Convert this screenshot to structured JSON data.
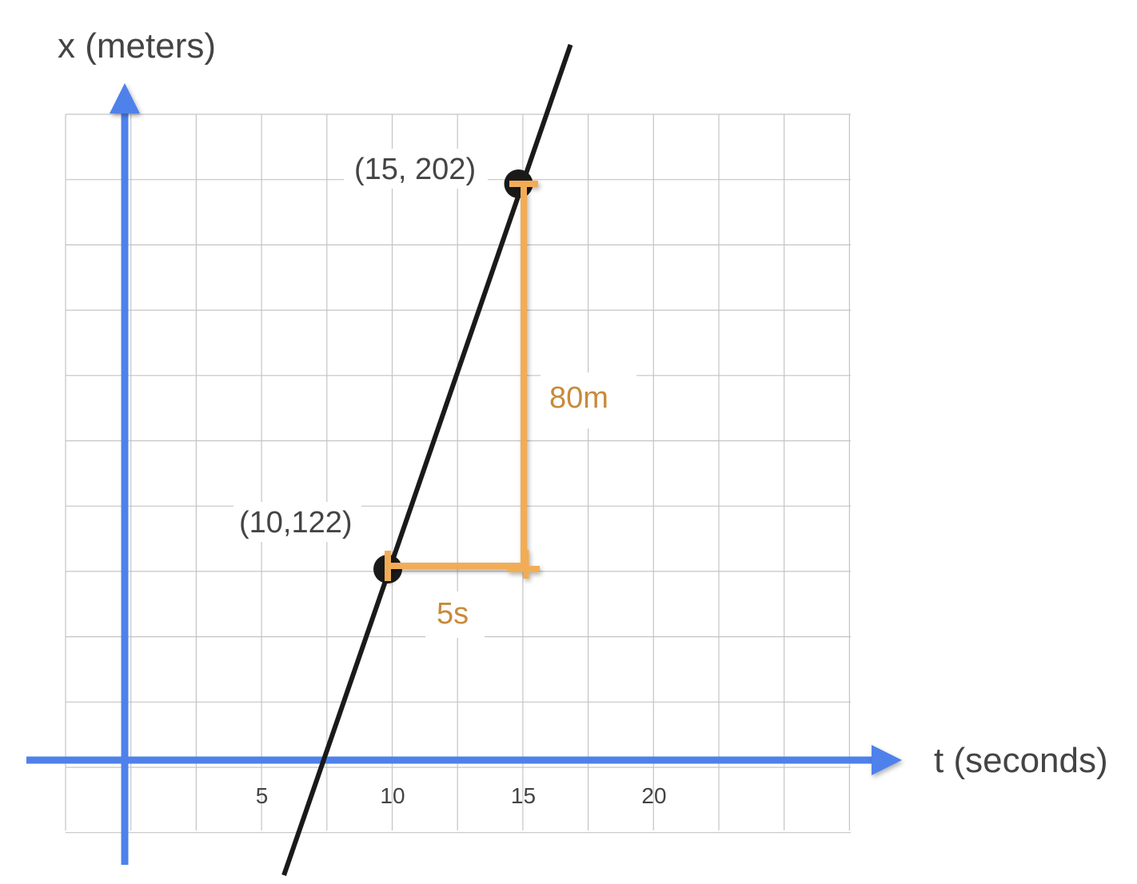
{
  "chart_data": {
    "type": "line",
    "xlabel": "t (seconds)",
    "ylabel": "x (meters)",
    "x_ticks": [
      5,
      10,
      15,
      20
    ],
    "grid": true,
    "points": [
      {
        "t": 10,
        "x": 122,
        "label": "(10,122)"
      },
      {
        "t": 15,
        "x": 202,
        "label": "(15, 202)"
      }
    ],
    "annotations": {
      "run_label": "5s",
      "rise_label": "80m"
    }
  },
  "colors": {
    "axis": "#4f81eb",
    "line": "#1a1a1a",
    "triangle": "#f2ac55",
    "triangle_text": "#c98a3a",
    "grid": "#c4c4c4",
    "text": "#444444"
  }
}
